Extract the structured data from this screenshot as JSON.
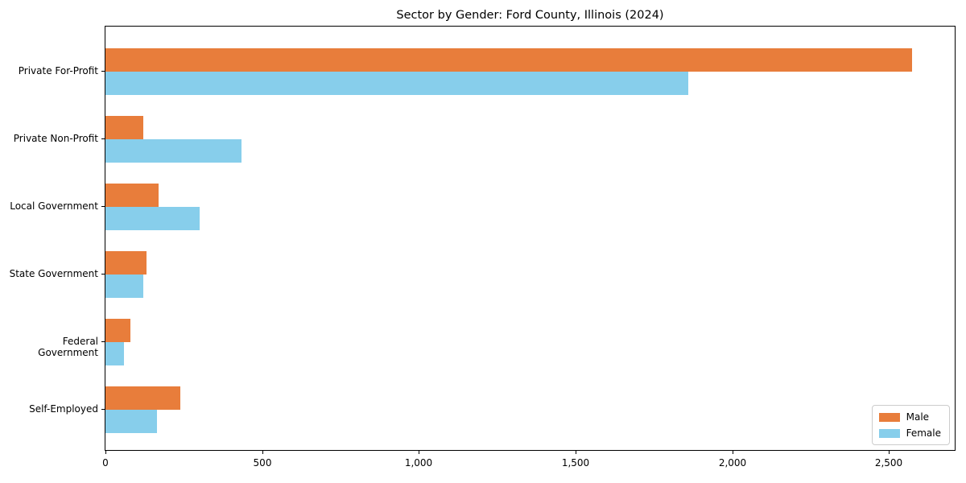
{
  "chart_data": {
    "type": "bar",
    "orientation": "horizontal",
    "title": "Sector by Gender: Ford County, Illinois (2024)",
    "categories": [
      "Private For-Profit",
      "Private Non-Profit",
      "Local Government",
      "State Government",
      "Federal Government",
      "Self-Employed"
    ],
    "series": [
      {
        "name": "Male",
        "color": "#e87d3b",
        "values": [
          2575,
          120,
          170,
          130,
          80,
          240
        ]
      },
      {
        "name": "Female",
        "color": "#87ceeb",
        "values": [
          1860,
          435,
          300,
          120,
          60,
          165
        ]
      }
    ],
    "xlabel": "",
    "ylabel": "",
    "xlim": [
      0,
      2710
    ],
    "x_ticks": [
      0,
      500,
      1000,
      1500,
      2000,
      2500
    ],
    "x_tick_labels": [
      "0",
      "500",
      "1,000",
      "1,500",
      "2,000",
      "2,500"
    ],
    "grid": false,
    "legend_position": "lower right",
    "axis_color": "#000000",
    "background_color": "#ffffff"
  }
}
